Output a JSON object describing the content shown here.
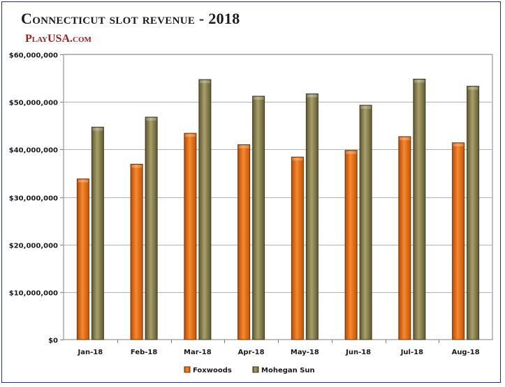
{
  "header": {
    "title": "Connecticut slot revenue - 2018",
    "source": "PlayUSA.com"
  },
  "colors": {
    "Foxwoods": "#ef6c14",
    "Mohegan Sun": "#8c8452"
  },
  "chart_data": {
    "type": "bar",
    "title": "Connecticut slot revenue - 2018",
    "xlabel": "",
    "ylabel": "",
    "categories": [
      "Jan-18",
      "Feb-18",
      "Mar-18",
      "Apr-18",
      "May-18",
      "Jun-18",
      "Jul-18",
      "Aug-18"
    ],
    "series": [
      {
        "name": "Foxwoods",
        "values": [
          33800000,
          36900000,
          43400000,
          41000000,
          38400000,
          39800000,
          42700000,
          41400000
        ]
      },
      {
        "name": "Mohegan Sun",
        "values": [
          44700000,
          46800000,
          54700000,
          51200000,
          51700000,
          49300000,
          54800000,
          53300000
        ]
      }
    ],
    "ylim": [
      0,
      60000000
    ],
    "yticks": [
      "$0",
      "$10,000,000",
      "$20,000,000",
      "$30,000,000",
      "$40,000,000",
      "$50,000,000",
      "$60,000,000"
    ],
    "ytick_values": [
      0,
      10000000,
      20000000,
      30000000,
      40000000,
      50000000,
      60000000
    ],
    "grid": true,
    "legend_position": "bottom"
  }
}
